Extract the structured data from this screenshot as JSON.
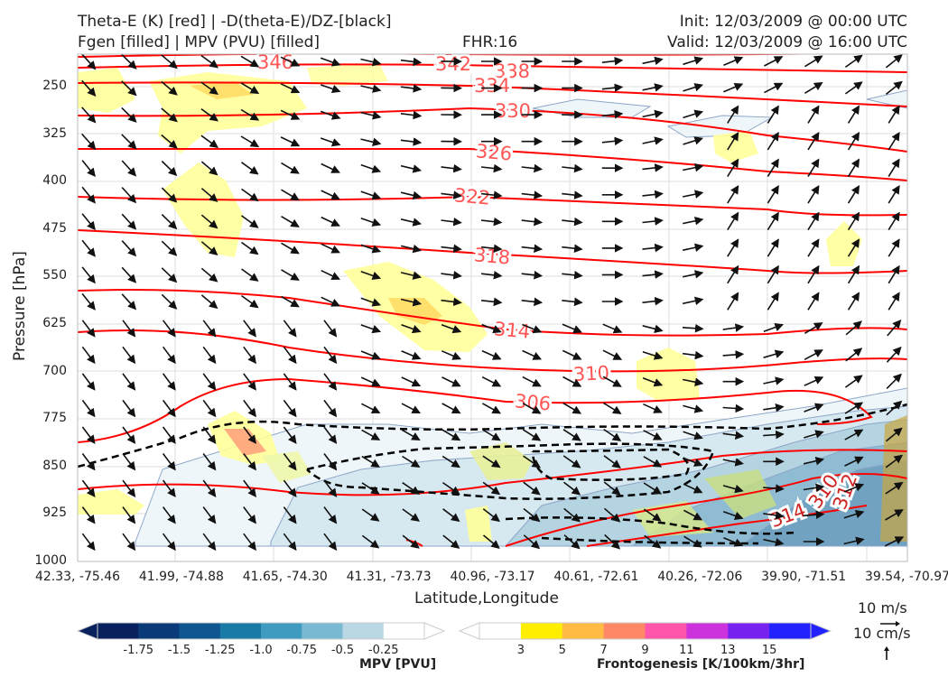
{
  "header": {
    "title_left_1": "Theta-E (K) [red] | -D(theta-E)/DZ-[black]",
    "title_left_2": "Fgen [filled] | MPV (PVU) [filled]",
    "fhr": "FHR:16",
    "init": "Init: 12/03/2009 @ 00:00 UTC",
    "valid": "Valid: 12/03/2009 @ 16:00 UTC"
  },
  "chart_data": {
    "type": "cross-section",
    "ylabel": "Pressure [hPa]",
    "xlabel": "Latitude,Longitude",
    "y_ticks": [
      "250",
      "325",
      "400",
      "475",
      "550",
      "625",
      "700",
      "775",
      "850",
      "925",
      "1000"
    ],
    "x_ticks": [
      "42.33, -75.46",
      "41.99, -74.88",
      "41.65, -74.30",
      "41.31, -73.73",
      "40.96, -73.17",
      "40.61, -72.61",
      "40.26, -72.06",
      "39.90, -71.51",
      "39.54, -70.97"
    ],
    "ylim": [
      1000,
      175
    ],
    "grid": true,
    "theta_e_labels": [
      "346",
      "342",
      "338",
      "334",
      "330",
      "326",
      "322",
      "318",
      "314",
      "310",
      "306",
      "314",
      "310",
      "312"
    ],
    "theta_e_color": "#ff0000",
    "colorbar_mpv": {
      "title": "MPV [PVU]",
      "labels": [
        "-1.75",
        "-1.5",
        "-1.25",
        "-1.0",
        "-0.75",
        "-0.5",
        "-0.25"
      ],
      "colors": [
        "#08205e",
        "#0b3a78",
        "#0f5690",
        "#1a7aa6",
        "#3f9bc0",
        "#7ab9d2",
        "#b9d8e3",
        "#ffffff"
      ]
    },
    "colorbar_fgen": {
      "title": "Frontogenesis [K/100km/3hr]",
      "labels": [
        "3",
        "5",
        "7",
        "9",
        "11",
        "13",
        "15"
      ],
      "colors": [
        "#ffffff",
        "#ffee00",
        "#ffbb44",
        "#ff8866",
        "#ff55aa",
        "#cc33dd",
        "#7722ee",
        "#2222ff"
      ]
    },
    "wind_reference": {
      "horizontal": "10 m/s",
      "vertical": "10 cm/s"
    }
  }
}
